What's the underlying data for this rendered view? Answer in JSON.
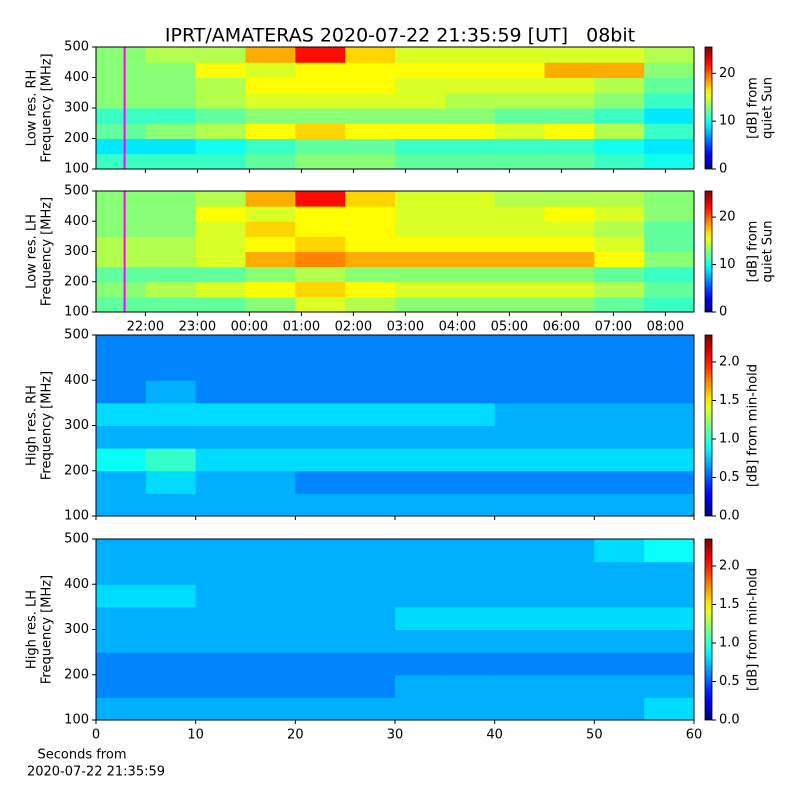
{
  "title": "IPRT/AMATERAS 2020-07-22 21:35:59 [UT]   08bit",
  "chart_data": [
    {
      "type": "heatmap",
      "colormap": "jet",
      "ylabel": [
        "Low res. RH",
        "Frequency [MHz]"
      ],
      "colorbar_label": [
        "[dB] from",
        "quiet Sun"
      ],
      "xlim": [
        21.05,
        32.55
      ],
      "ylim": [
        100,
        500
      ],
      "clim": [
        0,
        25.5
      ],
      "xticks": [
        {
          "value": 22,
          "label": "22:00"
        },
        {
          "value": 23,
          "label": "23:00"
        },
        {
          "value": 24,
          "label": "00:00"
        },
        {
          "value": 25,
          "label": "01:00"
        },
        {
          "value": 26,
          "label": "02:00"
        },
        {
          "value": 27,
          "label": "03:00"
        },
        {
          "value": 28,
          "label": "04:00"
        },
        {
          "value": 29,
          "label": "05:00"
        },
        {
          "value": 30,
          "label": "06:00"
        },
        {
          "value": 31,
          "label": "07:00"
        },
        {
          "value": 32,
          "label": "08:00"
        }
      ],
      "show_xticklabels": false,
      "yticks": [
        100,
        200,
        300,
        400,
        500
      ],
      "cticks": [
        0,
        10,
        20
      ],
      "markers": [
        {
          "x": 21.6,
          "color": "#ff00ff"
        }
      ],
      "z": [
        [
          11,
          11,
          11,
          12,
          13,
          13,
          12,
          12,
          12,
          12,
          11,
          10
        ],
        [
          9,
          9,
          10,
          11,
          12,
          12,
          11,
          11,
          11,
          11,
          10,
          9
        ],
        [
          12,
          13,
          14,
          16,
          17,
          16,
          16,
          16,
          15,
          16,
          14,
          11
        ],
        [
          11,
          11,
          12,
          13,
          13,
          13,
          13,
          13,
          12,
          12,
          11,
          9
        ],
        [
          13,
          13,
          14,
          15,
          15,
          15,
          15,
          14,
          14,
          14,
          13,
          11
        ],
        [
          13,
          13,
          14,
          16,
          16,
          16,
          15,
          15,
          15,
          15,
          14,
          12
        ],
        [
          13,
          13,
          16,
          15,
          16,
          16,
          16,
          16,
          16,
          18,
          18,
          13
        ],
        [
          13,
          14,
          14,
          18,
          22,
          17,
          15,
          15,
          15,
          15,
          15,
          14
        ]
      ]
    },
    {
      "type": "heatmap",
      "colormap": "jet",
      "ylabel": [
        "Low res. LH",
        "Frequency [MHz]"
      ],
      "colorbar_label": [
        "[dB] from",
        "quiet Sun"
      ],
      "xlim": [
        21.05,
        32.55
      ],
      "ylim": [
        100,
        500
      ],
      "clim": [
        0,
        25.5
      ],
      "xticks": [
        {
          "value": 22,
          "label": "22:00"
        },
        {
          "value": 23,
          "label": "23:00"
        },
        {
          "value": 24,
          "label": "00:00"
        },
        {
          "value": 25,
          "label": "01:00"
        },
        {
          "value": 26,
          "label": "02:00"
        },
        {
          "value": 27,
          "label": "03:00"
        },
        {
          "value": 28,
          "label": "04:00"
        },
        {
          "value": 29,
          "label": "05:00"
        },
        {
          "value": 30,
          "label": "06:00"
        },
        {
          "value": 31,
          "label": "07:00"
        },
        {
          "value": 32,
          "label": "08:00"
        }
      ],
      "show_xticklabels": true,
      "yticks": [
        100,
        200,
        300,
        400,
        500
      ],
      "cticks": [
        0,
        10,
        20
      ],
      "markers": [
        {
          "x": 21.6,
          "color": "#ff00ff"
        }
      ],
      "z": [
        [
          12,
          12,
          12,
          13,
          15,
          14,
          13,
          13,
          13,
          13,
          12,
          11
        ],
        [
          13,
          14,
          15,
          16,
          17,
          16,
          15,
          15,
          15,
          15,
          14,
          12
        ],
        [
          12,
          12,
          12,
          13,
          14,
          13,
          13,
          13,
          13,
          13,
          12,
          11
        ],
        [
          14,
          14,
          15,
          18,
          19,
          18,
          18,
          18,
          18,
          18,
          16,
          13
        ],
        [
          14,
          14,
          15,
          16,
          17,
          16,
          16,
          16,
          16,
          16,
          15,
          12
        ],
        [
          13,
          13,
          15,
          17,
          16,
          16,
          15,
          15,
          15,
          15,
          14,
          12
        ],
        [
          13,
          13,
          16,
          15,
          16,
          16,
          15,
          15,
          15,
          16,
          15,
          13
        ],
        [
          13,
          13,
          14,
          18,
          22,
          17,
          15,
          15,
          14,
          14,
          14,
          13
        ]
      ]
    },
    {
      "type": "heatmap",
      "colormap": "jet",
      "ylabel": [
        "High res. RH",
        "Frequency [MHz]"
      ],
      "colorbar_label": [
        "[dB] from min-hold"
      ],
      "xlim": [
        0,
        60
      ],
      "ylim": [
        100,
        500
      ],
      "clim": [
        0,
        2.35
      ],
      "xticks": [
        0,
        10,
        20,
        30,
        40,
        50,
        60
      ],
      "show_xticklabels": false,
      "yticks": [
        100,
        200,
        300,
        400,
        500
      ],
      "cticks": [
        0.0,
        0.5,
        1.0,
        1.5,
        2.0
      ],
      "z": [
        [
          0.7,
          0.7,
          0.7,
          0.7,
          0.7,
          0.7,
          0.7,
          0.7,
          0.7,
          0.7,
          0.7,
          0.7
        ],
        [
          0.7,
          0.8,
          0.7,
          0.7,
          0.6,
          0.6,
          0.6,
          0.6,
          0.6,
          0.6,
          0.6,
          0.6
        ],
        [
          0.9,
          1.0,
          0.8,
          0.8,
          0.8,
          0.8,
          0.8,
          0.8,
          0.8,
          0.8,
          0.8,
          0.8
        ],
        [
          0.7,
          0.7,
          0.7,
          0.7,
          0.7,
          0.7,
          0.7,
          0.7,
          0.7,
          0.7,
          0.7,
          0.7
        ],
        [
          0.8,
          0.8,
          0.8,
          0.8,
          0.8,
          0.8,
          0.8,
          0.8,
          0.7,
          0.7,
          0.7,
          0.7
        ],
        [
          0.6,
          0.7,
          0.6,
          0.6,
          0.6,
          0.6,
          0.6,
          0.6,
          0.6,
          0.6,
          0.6,
          0.6
        ],
        [
          0.6,
          0.6,
          0.6,
          0.6,
          0.6,
          0.6,
          0.6,
          0.6,
          0.6,
          0.6,
          0.6,
          0.6
        ],
        [
          0.6,
          0.6,
          0.6,
          0.6,
          0.6,
          0.6,
          0.6,
          0.6,
          0.6,
          0.6,
          0.6,
          0.6
        ]
      ]
    },
    {
      "type": "heatmap",
      "colormap": "jet",
      "ylabel": [
        "High res. LH",
        "Frequency [MHz]"
      ],
      "colorbar_label": [
        "[dB] from min-hold"
      ],
      "xlabel": [
        "Seconds from",
        "2020-07-22 21:35:59"
      ],
      "xlim": [
        0,
        60
      ],
      "ylim": [
        100,
        500
      ],
      "clim": [
        0,
        2.35
      ],
      "xticks": [
        0,
        10,
        20,
        30,
        40,
        50,
        60
      ],
      "show_xticklabels": true,
      "yticks": [
        100,
        200,
        300,
        400,
        500
      ],
      "cticks": [
        0.0,
        0.5,
        1.0,
        1.5,
        2.0
      ],
      "z": [
        [
          0.7,
          0.7,
          0.7,
          0.7,
          0.7,
          0.7,
          0.7,
          0.7,
          0.7,
          0.7,
          0.7,
          0.8
        ],
        [
          0.6,
          0.6,
          0.6,
          0.6,
          0.6,
          0.6,
          0.7,
          0.7,
          0.7,
          0.7,
          0.7,
          0.7
        ],
        [
          0.6,
          0.6,
          0.6,
          0.6,
          0.6,
          0.6,
          0.6,
          0.6,
          0.6,
          0.6,
          0.6,
          0.6
        ],
        [
          0.7,
          0.7,
          0.7,
          0.7,
          0.7,
          0.7,
          0.7,
          0.7,
          0.7,
          0.7,
          0.7,
          0.7
        ],
        [
          0.7,
          0.7,
          0.7,
          0.7,
          0.7,
          0.7,
          0.8,
          0.8,
          0.8,
          0.8,
          0.8,
          0.8
        ],
        [
          0.8,
          0.8,
          0.7,
          0.7,
          0.7,
          0.7,
          0.7,
          0.7,
          0.7,
          0.7,
          0.7,
          0.7
        ],
        [
          0.7,
          0.7,
          0.7,
          0.7,
          0.7,
          0.7,
          0.7,
          0.7,
          0.7,
          0.7,
          0.7,
          0.7
        ],
        [
          0.7,
          0.7,
          0.7,
          0.7,
          0.7,
          0.7,
          0.7,
          0.7,
          0.7,
          0.7,
          0.8,
          0.9
        ]
      ]
    }
  ]
}
